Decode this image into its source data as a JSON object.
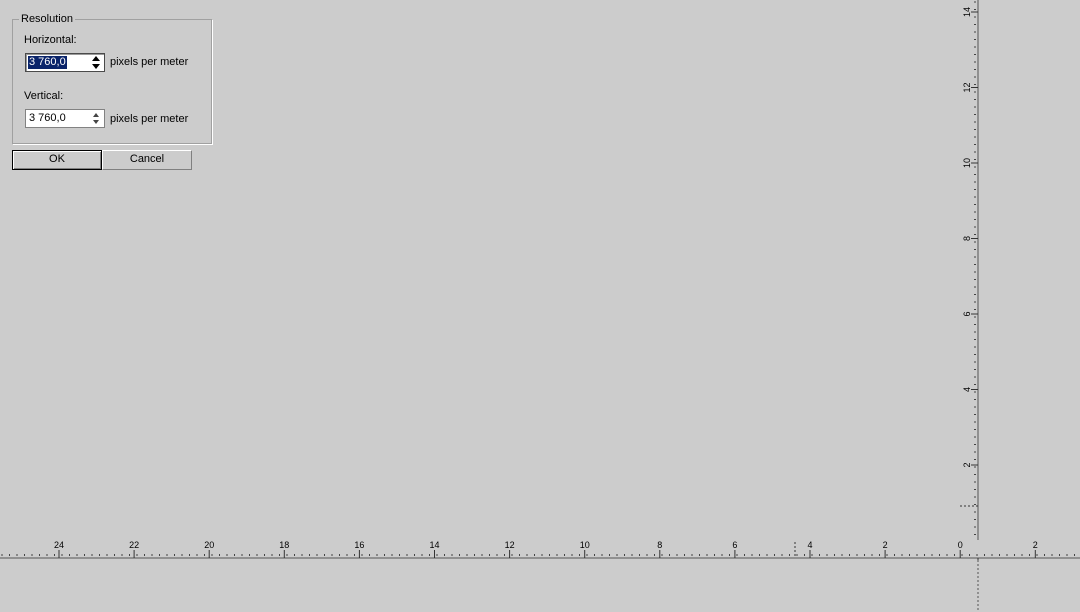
{
  "dialog": {
    "group_title": "Resolution",
    "horizontal_label": "Horizontal:",
    "horizontal_value": "3 760,0",
    "horizontal_unit": "pixels per meter",
    "vertical_label": "Vertical:",
    "vertical_value": "3 760,0",
    "vertical_unit": "pixels per meter",
    "ok_label": "OK",
    "cancel_label": "Cancel"
  },
  "ruler_horizontal": {
    "labels": [
      "24",
      "22",
      "20",
      "18",
      "16",
      "14",
      "12",
      "10",
      "8",
      "6",
      "4",
      "2",
      "0",
      "2"
    ]
  },
  "ruler_vertical": {
    "labels": [
      "14",
      "12",
      "10",
      "8",
      "6",
      "4",
      "2"
    ]
  },
  "icons": {
    "spin_up": "arrow-up-icon",
    "spin_down": "arrow-down-icon"
  }
}
